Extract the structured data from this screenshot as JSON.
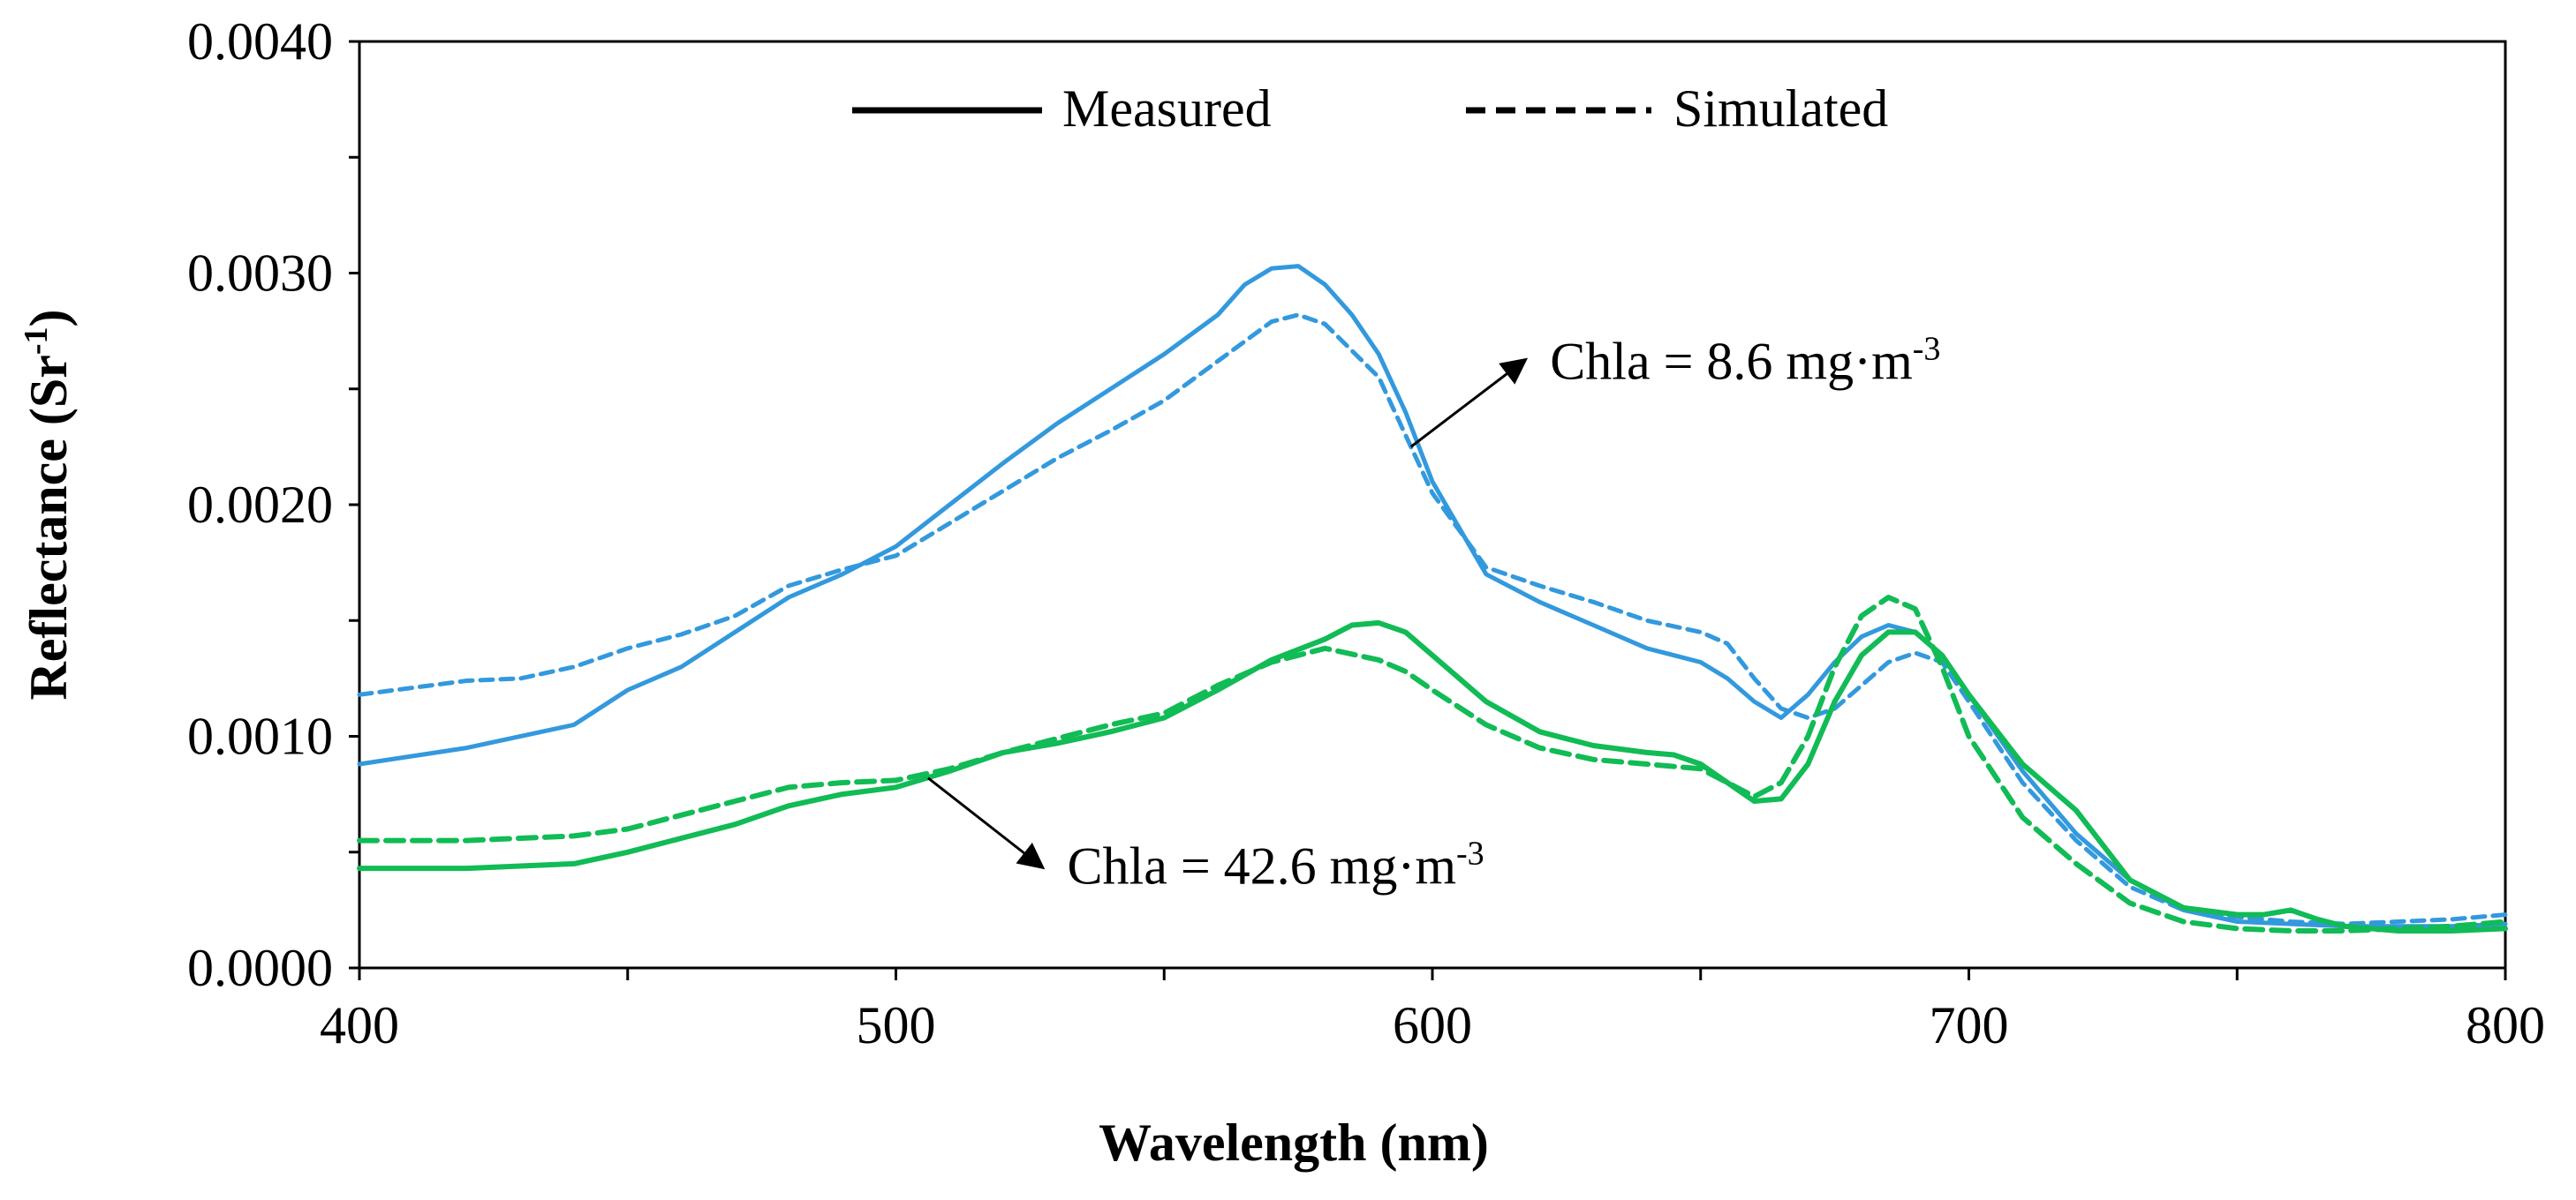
{
  "chart_data": {
    "type": "line",
    "title": "",
    "xlabel": "Wavelength (nm)",
    "ylabel": "Reflectance (Sr",
    "ylabel_sup": "-1",
    "ylabel_close": ")",
    "xlim": [
      400,
      800
    ],
    "ylim": [
      0,
      0.004
    ],
    "xticks": [
      "400",
      "500",
      "600",
      "700",
      "800"
    ],
    "yticks": [
      "0.0000",
      "0.0010",
      "0.0020",
      "0.0030",
      "0.0040"
    ],
    "legend": {
      "position": "top-center",
      "entries": [
        {
          "label": "Measured",
          "style": "solid"
        },
        {
          "label": "Simulated",
          "style": "dashed"
        }
      ]
    },
    "colors": {
      "low_chla": "#3399dd",
      "high_chla": "#11bb55",
      "axis": "#000000"
    },
    "series": [
      {
        "name": "Measured (Chla = 8.6 mg·m-3)",
        "group": "low_chla",
        "style": "solid",
        "x": [
          400,
          420,
          440,
          450,
          460,
          470,
          480,
          490,
          500,
          510,
          520,
          530,
          540,
          550,
          560,
          565,
          570,
          575,
          580,
          585,
          590,
          595,
          600,
          610,
          620,
          630,
          640,
          650,
          655,
          660,
          665,
          670,
          675,
          680,
          685,
          690,
          695,
          700,
          710,
          720,
          730,
          740,
          750,
          760,
          770,
          780,
          790,
          800
        ],
        "y": [
          0.00088,
          0.00095,
          0.00105,
          0.0012,
          0.0013,
          0.00145,
          0.0016,
          0.0017,
          0.00182,
          0.002,
          0.00218,
          0.00235,
          0.0025,
          0.00265,
          0.00282,
          0.00295,
          0.00302,
          0.00303,
          0.00295,
          0.00282,
          0.00265,
          0.0024,
          0.0021,
          0.0017,
          0.00158,
          0.00148,
          0.00138,
          0.00132,
          0.00125,
          0.00115,
          0.00108,
          0.00118,
          0.00132,
          0.00143,
          0.00148,
          0.00145,
          0.00135,
          0.00118,
          0.00085,
          0.00058,
          0.00038,
          0.00025,
          0.0002,
          0.00019,
          0.00018,
          0.00018,
          0.00018,
          0.00019
        ]
      },
      {
        "name": "Simulated (Chla = 8.6 mg·m-3)",
        "group": "low_chla",
        "style": "dashed",
        "x": [
          400,
          410,
          420,
          430,
          440,
          450,
          460,
          470,
          480,
          490,
          500,
          510,
          520,
          530,
          540,
          550,
          560,
          570,
          575,
          580,
          590,
          600,
          610,
          620,
          630,
          640,
          650,
          655,
          660,
          665,
          670,
          675,
          680,
          685,
          690,
          695,
          700,
          710,
          720,
          730,
          740,
          750,
          760,
          770,
          780,
          790,
          800
        ],
        "y": [
          0.00118,
          0.00121,
          0.00124,
          0.00125,
          0.0013,
          0.00138,
          0.00144,
          0.00152,
          0.00165,
          0.00172,
          0.00178,
          0.00192,
          0.00206,
          0.0022,
          0.00232,
          0.00245,
          0.00262,
          0.00279,
          0.00282,
          0.00278,
          0.00255,
          0.00205,
          0.00173,
          0.00165,
          0.00158,
          0.0015,
          0.00145,
          0.0014,
          0.00125,
          0.00112,
          0.00108,
          0.00112,
          0.00122,
          0.00132,
          0.00136,
          0.00132,
          0.00115,
          0.0008,
          0.00055,
          0.00035,
          0.00025,
          0.00022,
          0.0002,
          0.00019,
          0.0002,
          0.00021,
          0.00023
        ]
      },
      {
        "name": "Measured (Chla = 42.6 mg·m-3)",
        "group": "high_chla",
        "style": "solid",
        "x": [
          400,
          420,
          440,
          450,
          460,
          470,
          480,
          490,
          500,
          510,
          520,
          530,
          540,
          550,
          560,
          570,
          580,
          585,
          590,
          595,
          600,
          610,
          620,
          630,
          640,
          645,
          650,
          655,
          660,
          665,
          670,
          675,
          680,
          685,
          690,
          695,
          700,
          710,
          720,
          730,
          740,
          750,
          755,
          760,
          765,
          770,
          780,
          790,
          800
        ],
        "y": [
          0.00043,
          0.00043,
          0.00045,
          0.0005,
          0.00056,
          0.00062,
          0.0007,
          0.00075,
          0.00078,
          0.00085,
          0.00093,
          0.00097,
          0.00102,
          0.00108,
          0.0012,
          0.00133,
          0.00142,
          0.00148,
          0.00149,
          0.00145,
          0.00135,
          0.00115,
          0.00102,
          0.00096,
          0.00093,
          0.00092,
          0.00088,
          0.0008,
          0.00072,
          0.00073,
          0.00088,
          0.00115,
          0.00135,
          0.00145,
          0.00145,
          0.00135,
          0.00118,
          0.00088,
          0.00068,
          0.00038,
          0.00026,
          0.00023,
          0.00023,
          0.00025,
          0.00021,
          0.00018,
          0.00016,
          0.00016,
          0.00017
        ]
      },
      {
        "name": "Simulated (Chla = 42.6 mg·m-3)",
        "group": "high_chla",
        "style": "dashed",
        "x": [
          400,
          420,
          440,
          450,
          460,
          470,
          480,
          490,
          500,
          510,
          520,
          530,
          540,
          550,
          560,
          570,
          580,
          590,
          595,
          600,
          610,
          620,
          630,
          640,
          650,
          655,
          660,
          665,
          670,
          675,
          680,
          685,
          690,
          695,
          700,
          710,
          720,
          730,
          740,
          750,
          760,
          770,
          780,
          790,
          800
        ],
        "y": [
          0.00055,
          0.00055,
          0.00057,
          0.0006,
          0.00066,
          0.00072,
          0.00078,
          0.0008,
          0.00081,
          0.00086,
          0.00093,
          0.00099,
          0.00105,
          0.0011,
          0.00122,
          0.00132,
          0.00138,
          0.00133,
          0.00128,
          0.0012,
          0.00105,
          0.00095,
          0.0009,
          0.00088,
          0.00086,
          0.0008,
          0.00074,
          0.0008,
          0.001,
          0.0013,
          0.00152,
          0.0016,
          0.00155,
          0.0013,
          0.001,
          0.00065,
          0.00045,
          0.00028,
          0.0002,
          0.00017,
          0.00016,
          0.00016,
          0.00017,
          0.00018,
          0.0002
        ]
      }
    ],
    "annotations": [
      {
        "text": "Chla = 8.6 mg·m",
        "sup": "-3",
        "arrow_from": [
          596,
          0.00225
        ],
        "arrow_to": [
          617,
          0.00262
        ]
      },
      {
        "text": "Chla = 42.6 mg·m",
        "sup": "-3",
        "arrow_from": [
          506,
          0.00082
        ],
        "arrow_to": [
          527,
          0.00044
        ]
      }
    ]
  }
}
